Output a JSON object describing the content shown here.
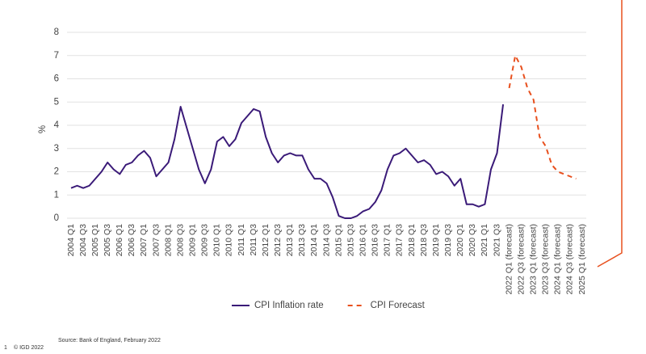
{
  "chart_data": {
    "type": "line",
    "ylabel": "%",
    "categories": [
      "2004 Q1",
      null,
      "2004 Q3",
      null,
      "2005 Q1",
      null,
      "2005 Q3",
      null,
      "2006 Q1",
      null,
      "2006 Q3",
      null,
      "2007 Q1",
      null,
      "2007 Q3",
      null,
      "2008 Q1",
      null,
      "2008 Q3",
      null,
      "2009 Q1",
      null,
      "2009 Q3",
      null,
      "2010 Q1",
      null,
      "2010 Q3",
      null,
      "2011 Q1",
      null,
      "2011 Q3",
      null,
      "2012 Q1",
      null,
      "2012 Q3",
      null,
      "2013 Q1",
      null,
      "2013 Q3",
      null,
      "2014 Q1",
      null,
      "2014 Q3",
      null,
      "2015 Q1",
      null,
      "2015 Q3",
      null,
      "2016 Q1",
      null,
      "2016 Q3",
      null,
      "2017 Q1",
      null,
      "2017 Q3",
      null,
      "2018 Q1",
      null,
      "2018 Q3",
      null,
      "2019 Q1",
      null,
      "2019 Q3",
      null,
      "2020 Q1",
      null,
      "2020 Q3",
      null,
      "2021 Q1",
      null,
      "2021 Q3",
      null,
      "2022 Q1 (forecast)",
      null,
      "2022 Q3 (forecast)",
      null,
      "2023 Q1 (forecast)",
      null,
      "2023 Q3 (forecast)",
      null,
      "2024 Q1 (forecast)",
      null,
      "2024 Q3 (forecast)",
      null,
      "2025 Q1 (forecast)"
    ],
    "series": [
      {
        "name": "CPI Inflation rate",
        "color": "#3a1a78",
        "dashed": false,
        "values": [
          1.3,
          1.4,
          1.3,
          1.4,
          1.7,
          2.0,
          2.4,
          2.1,
          1.9,
          2.3,
          2.4,
          2.7,
          2.9,
          2.6,
          1.8,
          2.1,
          2.4,
          3.4,
          4.8,
          3.9,
          3.0,
          2.1,
          1.5,
          2.1,
          3.3,
          3.5,
          3.1,
          3.4,
          4.1,
          4.4,
          4.7,
          4.6,
          3.5,
          2.8,
          2.4,
          2.7,
          2.8,
          2.7,
          2.7,
          2.1,
          1.7,
          1.7,
          1.5,
          0.9,
          0.1,
          0.0,
          0.0,
          0.1,
          0.3,
          0.4,
          0.7,
          1.2,
          2.1,
          2.7,
          2.8,
          3.0,
          2.7,
          2.4,
          2.5,
          2.3,
          1.9,
          2.0,
          1.8,
          1.4,
          1.7,
          0.6,
          0.6,
          0.5,
          0.6,
          2.1,
          2.8,
          4.9,
          null,
          null,
          null,
          null,
          null,
          null,
          null,
          null,
          null,
          null,
          null,
          null,
          null
        ]
      },
      {
        "name": "CPI Forecast",
        "color": "#e8501e",
        "dashed": true,
        "values": [
          null,
          null,
          null,
          null,
          null,
          null,
          null,
          null,
          null,
          null,
          null,
          null,
          null,
          null,
          null,
          null,
          null,
          null,
          null,
          null,
          null,
          null,
          null,
          null,
          null,
          null,
          null,
          null,
          null,
          null,
          null,
          null,
          null,
          null,
          null,
          null,
          null,
          null,
          null,
          null,
          null,
          null,
          null,
          null,
          null,
          null,
          null,
          null,
          null,
          null,
          null,
          null,
          null,
          null,
          null,
          null,
          null,
          null,
          null,
          null,
          null,
          null,
          null,
          null,
          null,
          null,
          null,
          null,
          null,
          null,
          null,
          null,
          5.6,
          7.0,
          6.5,
          5.6,
          5.1,
          3.5,
          3.1,
          2.3,
          2.0,
          1.9,
          1.8,
          1.7,
          null
        ]
      }
    ],
    "ylim": [
      0,
      8
    ],
    "yticks": [
      0,
      1,
      2,
      3,
      4,
      5,
      6,
      7,
      8
    ],
    "grid": true,
    "legend": "bottom"
  },
  "source": "Source: Bank of England, February 2022",
  "footer": {
    "page": "1",
    "copyright": "© IGD 2022"
  }
}
